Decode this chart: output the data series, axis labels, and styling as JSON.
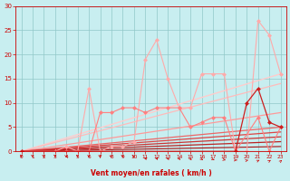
{
  "xlabel": "Vent moyen/en rafales ( km/h )",
  "bg_color": "#c8eef0",
  "grid_color": "#90c8c8",
  "xlim": [
    -0.5,
    23.5
  ],
  "ylim": [
    0,
    30
  ],
  "xticks": [
    0,
    1,
    2,
    3,
    4,
    5,
    6,
    7,
    8,
    9,
    10,
    11,
    12,
    13,
    14,
    15,
    16,
    17,
    18,
    19,
    20,
    21,
    22,
    23
  ],
  "yticks": [
    0,
    5,
    10,
    15,
    20,
    25,
    30
  ],
  "series": [
    {
      "x": [
        0,
        3,
        4,
        5,
        6,
        7,
        8,
        9,
        10,
        11,
        12,
        13,
        14,
        15,
        16,
        17,
        18,
        19,
        20,
        21,
        22,
        23
      ],
      "y": [
        0,
        0,
        1,
        0,
        13,
        0,
        1,
        1,
        2,
        19,
        23,
        15,
        9,
        9,
        16,
        16,
        16,
        0,
        0,
        27,
        24,
        16
      ],
      "color": "#ffaaaa",
      "lw": 0.8,
      "marker": "D",
      "ms": 2.0
    },
    {
      "x": [
        0,
        4,
        5,
        6,
        7,
        8,
        9,
        10,
        11,
        12,
        13,
        14,
        15,
        16,
        17,
        18,
        19,
        21,
        22,
        23
      ],
      "y": [
        0,
        0,
        0,
        0,
        8,
        8,
        9,
        9,
        8,
        9,
        9,
        9,
        5,
        6,
        7,
        7,
        0,
        7,
        0,
        5
      ],
      "color": "#ff8080",
      "lw": 0.8,
      "marker": "D",
      "ms": 2.0
    },
    {
      "x": [
        0,
        19,
        20,
        21,
        22,
        23
      ],
      "y": [
        0,
        0,
        10,
        13,
        6,
        5
      ],
      "color": "#cc2020",
      "lw": 0.9,
      "marker": "D",
      "ms": 2.0
    },
    {
      "x": [
        0,
        23
      ],
      "y": [
        0,
        16
      ],
      "color": "#ffcccc",
      "lw": 1.0,
      "marker": null,
      "ms": 0
    },
    {
      "x": [
        0,
        23
      ],
      "y": [
        0,
        14
      ],
      "color": "#ffbbbb",
      "lw": 0.9,
      "marker": null,
      "ms": 0
    },
    {
      "x": [
        0,
        23
      ],
      "y": [
        0,
        8
      ],
      "color": "#ff9999",
      "lw": 0.9,
      "marker": null,
      "ms": 0
    },
    {
      "x": [
        0,
        23
      ],
      "y": [
        0,
        5
      ],
      "color": "#ee6666",
      "lw": 0.9,
      "marker": null,
      "ms": 0
    },
    {
      "x": [
        0,
        23
      ],
      "y": [
        0,
        4
      ],
      "color": "#dd4444",
      "lw": 0.9,
      "marker": null,
      "ms": 0
    },
    {
      "x": [
        0,
        23
      ],
      "y": [
        0,
        3
      ],
      "color": "#cc3333",
      "lw": 0.9,
      "marker": null,
      "ms": 0
    },
    {
      "x": [
        0,
        23
      ],
      "y": [
        0,
        2
      ],
      "color": "#bb2222",
      "lw": 0.9,
      "marker": null,
      "ms": 0
    },
    {
      "x": [
        0,
        23
      ],
      "y": [
        0,
        1
      ],
      "color": "#aa1111",
      "lw": 0.8,
      "marker": null,
      "ms": 0
    }
  ],
  "tick_color": "#cc0000",
  "label_color": "#cc0000",
  "spine_color": "#cc0000",
  "bottom_line_color": "#cc2020"
}
